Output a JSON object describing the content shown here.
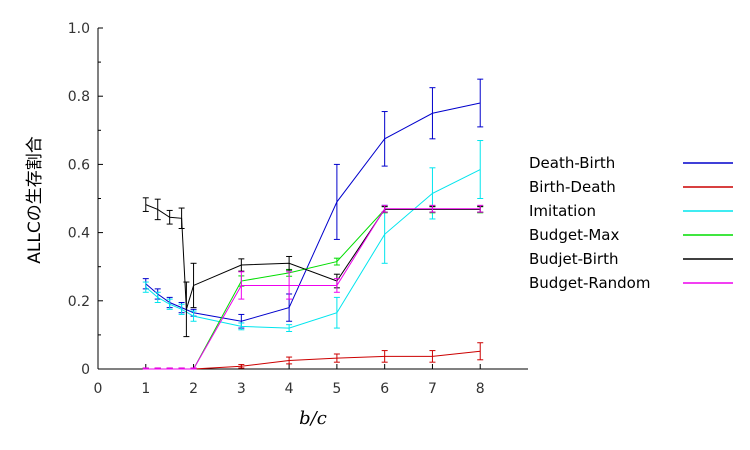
{
  "chart_data": {
    "type": "line",
    "xlabel": "b/c",
    "ylabel": "ALLCの生存割合",
    "xlim": [
      0,
      9
    ],
    "ylim": [
      0,
      1.0
    ],
    "x_ticks": [
      "0",
      "1",
      "2",
      "3",
      "4",
      "5",
      "6",
      "7",
      "8"
    ],
    "y_ticks": [
      "0",
      "0.2",
      "0.4",
      "0.6",
      "0.8",
      "1.0"
    ],
    "grid": false,
    "legend_position": "right",
    "series": [
      {
        "name": "Death-Birth",
        "color": "#0000cc",
        "points": [
          [
            1,
            0.25,
            0.015
          ],
          [
            1.25,
            0.22,
            0.015
          ],
          [
            1.5,
            0.195,
            0.015
          ],
          [
            1.75,
            0.18,
            0.015
          ],
          [
            2,
            0.165,
            0.01
          ],
          [
            3,
            0.14,
            0.02
          ],
          [
            4,
            0.18,
            0.04
          ],
          [
            5,
            0.49,
            0.11
          ],
          [
            6,
            0.675,
            0.08
          ],
          [
            7,
            0.75,
            0.075
          ],
          [
            8,
            0.78,
            0.07
          ]
        ]
      },
      {
        "name": "Birth-Death",
        "color": "#cc0000",
        "points": [
          [
            1,
            0.0,
            0.003
          ],
          [
            1.25,
            0.0,
            0.003
          ],
          [
            1.5,
            0.0,
            0.003
          ],
          [
            1.75,
            0.0,
            0.003
          ],
          [
            2,
            0.0,
            0.003
          ],
          [
            3,
            0.008,
            0.005
          ],
          [
            4,
            0.025,
            0.01
          ],
          [
            5,
            0.032,
            0.012
          ],
          [
            6,
            0.037,
            0.017
          ],
          [
            7,
            0.037,
            0.017
          ],
          [
            8,
            0.052,
            0.025
          ]
        ]
      },
      {
        "name": "Imitation",
        "color": "#00e5ee",
        "points": [
          [
            1,
            0.24,
            0.015
          ],
          [
            1.25,
            0.21,
            0.015
          ],
          [
            1.5,
            0.19,
            0.015
          ],
          [
            1.75,
            0.175,
            0.015
          ],
          [
            2,
            0.155,
            0.015
          ],
          [
            3,
            0.125,
            0.01
          ],
          [
            4,
            0.12,
            0.01
          ],
          [
            5,
            0.165,
            0.045
          ],
          [
            6,
            0.395,
            0.085
          ],
          [
            7,
            0.515,
            0.075
          ],
          [
            8,
            0.585,
            0.085
          ]
        ]
      },
      {
        "name": "Budget-Max",
        "color": "#00dd00",
        "points": [
          [
            1,
            0.0,
            0.003
          ],
          [
            1.25,
            0.0,
            0.003
          ],
          [
            1.5,
            0.0,
            0.003
          ],
          [
            1.75,
            0.0,
            0.003
          ],
          [
            2,
            0.0,
            0.003
          ],
          [
            3,
            0.258,
            0.015
          ],
          [
            4,
            0.282,
            0.01
          ],
          [
            5,
            0.315,
            0.01
          ],
          [
            6,
            0.468,
            0.01
          ],
          [
            7,
            0.468,
            0.01
          ],
          [
            8,
            0.468,
            0.01
          ]
        ]
      },
      {
        "name": "Budjet-Birth",
        "color": "#000000",
        "points": [
          [
            1,
            0.482,
            0.02
          ],
          [
            1.25,
            0.468,
            0.03
          ],
          [
            1.5,
            0.445,
            0.02
          ],
          [
            1.75,
            0.442,
            0.03
          ],
          [
            1.85,
            0.175,
            0.08
          ],
          [
            2,
            0.245,
            0.065
          ],
          [
            3,
            0.305,
            0.018
          ],
          [
            4,
            0.31,
            0.02
          ],
          [
            5,
            0.258,
            0.02
          ],
          [
            6,
            0.468,
            0.008
          ],
          [
            7,
            0.468,
            0.008
          ],
          [
            8,
            0.468,
            0.008
          ]
        ]
      },
      {
        "name": "Budget-Random",
        "color": "#ee00ee",
        "points": [
          [
            1,
            0.0,
            0.003
          ],
          [
            1.25,
            0.0,
            0.003
          ],
          [
            1.5,
            0.0,
            0.003
          ],
          [
            1.75,
            0.0,
            0.003
          ],
          [
            2,
            0.0,
            0.003
          ],
          [
            3,
            0.245,
            0.04
          ],
          [
            4,
            0.245,
            0.04
          ],
          [
            5,
            0.245,
            0.02
          ],
          [
            6,
            0.47,
            0.01
          ],
          [
            7,
            0.47,
            0.01
          ],
          [
            8,
            0.47,
            0.01
          ]
        ]
      }
    ]
  }
}
